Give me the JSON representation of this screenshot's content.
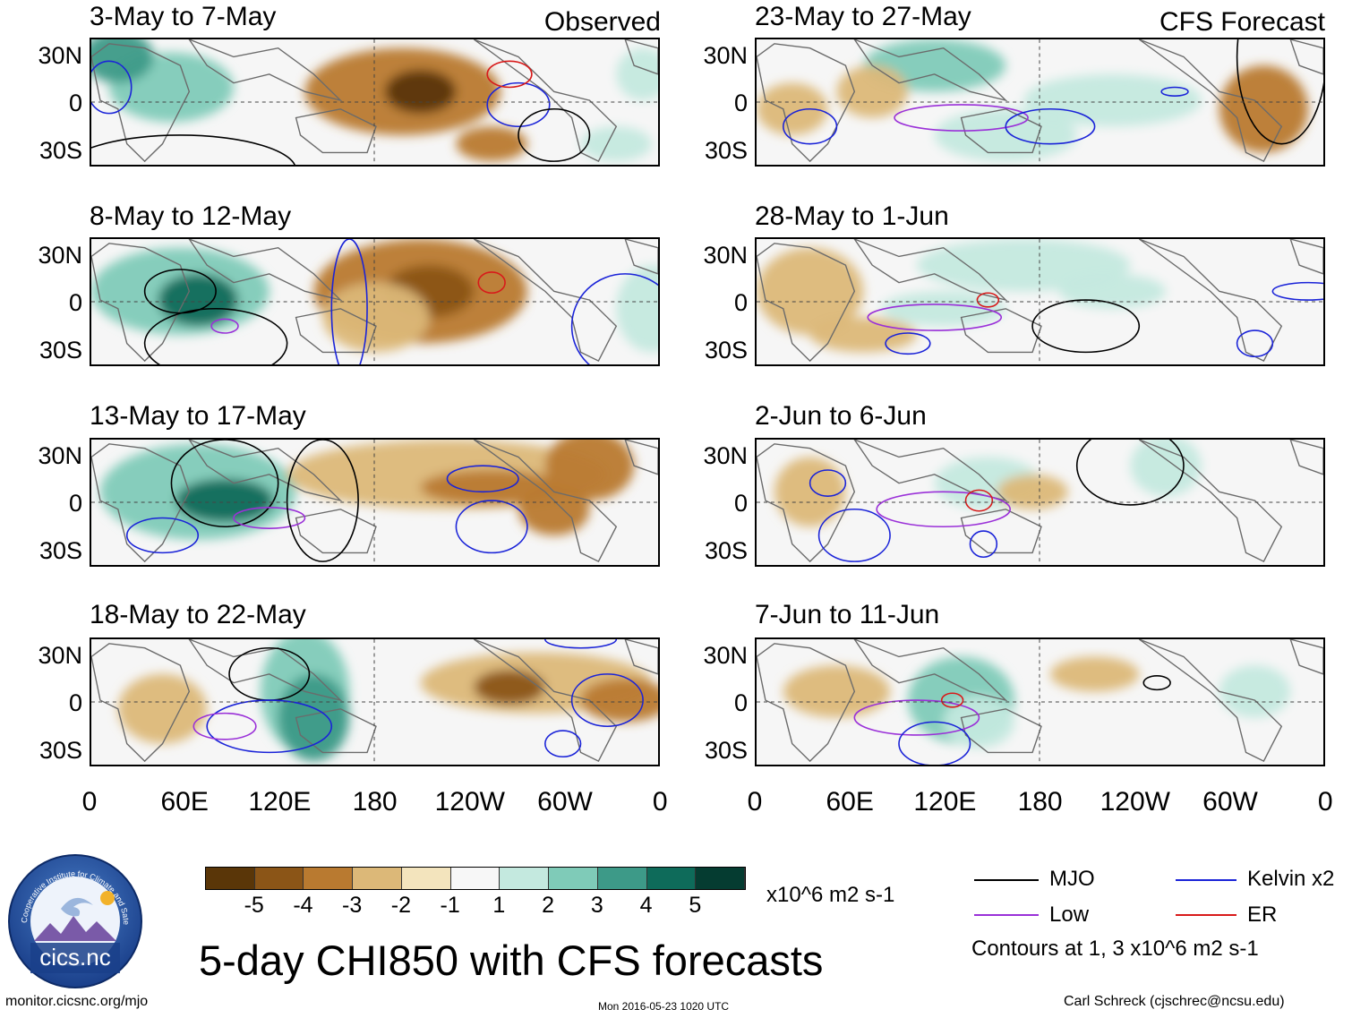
{
  "observed_label": "Observed",
  "forecast_label": "CFS Forecast",
  "lat_labels": [
    "30N",
    "0",
    "30S"
  ],
  "lon_labels": [
    "0",
    "60E",
    "120E",
    "180",
    "120W",
    "60W",
    "0"
  ],
  "panels": [
    {
      "title": "3-May to 7-May",
      "kind": "observed"
    },
    {
      "title": "8-May to 12-May",
      "kind": "observed"
    },
    {
      "title": "13-May to 17-May",
      "kind": "observed"
    },
    {
      "title": "18-May to 22-May",
      "kind": "observed"
    },
    {
      "title": "23-May to 27-May",
      "kind": "forecast"
    },
    {
      "title": "28-May to 1-Jun",
      "kind": "forecast"
    },
    {
      "title": "2-Jun to 6-Jun",
      "kind": "forecast"
    },
    {
      "title": "7-Jun to 11-Jun",
      "kind": "forecast"
    }
  ],
  "colorbar": {
    "labels": [
      "-5",
      "-4",
      "-3",
      "-2",
      "-1",
      "1",
      "2",
      "3",
      "4",
      "5"
    ],
    "colors": [
      "#5a3608",
      "#8b5517",
      "#b97a30",
      "#dcb878",
      "#f3e4bd",
      "#f7f7f7",
      "#c4e9df",
      "#7fcbb8",
      "#3d9a88",
      "#0e6b5a",
      "#053c31"
    ],
    "units": "x10^6 m2 s-1"
  },
  "legend": {
    "items": [
      {
        "label": "MJO",
        "color": "#000000"
      },
      {
        "label": "Kelvin x2",
        "color": "#1a23d8"
      },
      {
        "label": "Low",
        "color": "#9a30d8"
      },
      {
        "label": "ER",
        "color": "#d81a1a"
      }
    ],
    "contours_note": "Contours at 1, 3 x10^6 m2 s-1"
  },
  "logo_text": "cics.nc",
  "logo_ring_text": "Cooperative Institute for Climate and Satellites",
  "main_title": "5-day CHI850 with CFS forecasts",
  "footer": {
    "url": "monitor.cicsnc.org/mjo",
    "timestamp": "Mon 2016-05-23 1020 UTC",
    "author": "Carl Schreck (cjschrec@ncsu.edu)"
  }
}
